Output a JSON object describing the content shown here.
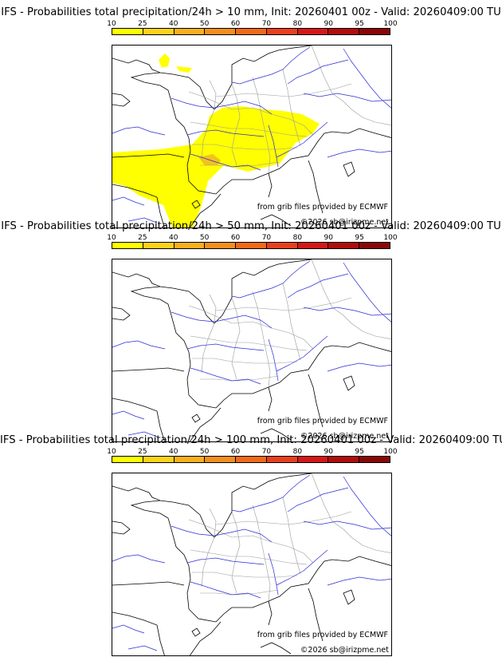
{
  "panels": [
    {
      "title": "IFS - Probabilities total precipitation/24h > 10 mm, Init: 20260401 00z - Valid: 20260409:00 TU",
      "threshold_mm": 10,
      "has_precip": true
    },
    {
      "title": "IFS - Probabilities total precipitation/24h > 50 mm, Init: 20260401 00z - Valid: 20260409:00 TU",
      "threshold_mm": 50,
      "has_precip": false
    },
    {
      "title": "IFS - Probabilities total precipitation/24h > 100 mm, Init: 20260401 00z - Valid: 20260409:00 TU",
      "threshold_mm": 100,
      "has_precip": false
    }
  ],
  "scale": {
    "labels": [
      "10",
      "25",
      "40",
      "50",
      "60",
      "70",
      "80",
      "90",
      "95",
      "100"
    ],
    "colors": [
      "#ffff00",
      "#ffd21a",
      "#f9b01e",
      "#f48f1e",
      "#f06a1a",
      "#e8401e",
      "#d41818",
      "#b00d0d",
      "#8a0707",
      "#5c0202"
    ]
  },
  "credits": {
    "source": "from grib files provided by ECMWF",
    "copyright": "©2026 sb@irizpme.net"
  },
  "colors": {
    "coast": "#000000",
    "rivers": "#2b2bd6",
    "regions": "#9a9a9a",
    "precip_low": "#ffff00",
    "precip_mid": "#f2c21e"
  }
}
